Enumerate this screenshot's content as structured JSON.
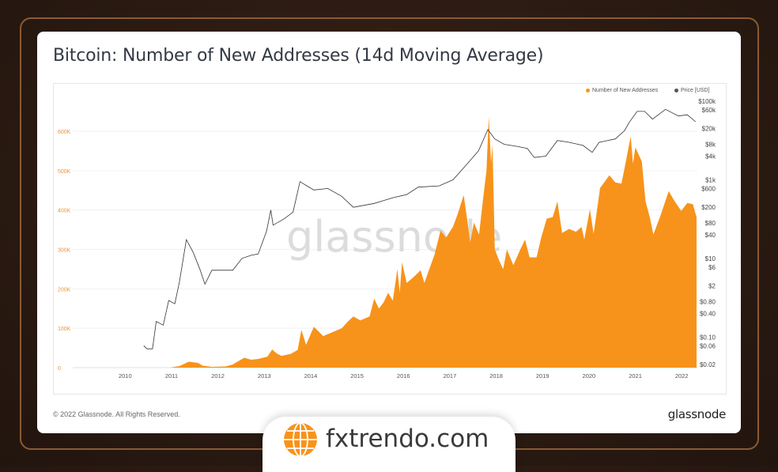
{
  "title": "Bitcoin: Number of New Addresses (14d Moving Average)",
  "footer": {
    "copyright": "© 2022 Glassnode. All Rights Reserved.",
    "logo": "glassnode"
  },
  "watermark": "glassnode",
  "badge": {
    "text": "fxtrendo.com",
    "icon": "globe-icon",
    "icon_color": "#f7931a"
  },
  "colors": {
    "addresses": "#f7931a",
    "price": "#333333",
    "left_axis": "#e8953a"
  },
  "chart_data": {
    "type": "area",
    "title": "Bitcoin: Number of New Addresses (14d Moving Average)",
    "legend": {
      "placement": "top-right",
      "entries": [
        "Number of New Addresses",
        "Price [USD]"
      ]
    },
    "grid": true,
    "x_ticks": [
      "2010",
      "2011",
      "2012",
      "2013",
      "2014",
      "2015",
      "2016",
      "2017",
      "2018",
      "2019",
      "2020",
      "2021",
      "2022"
    ],
    "xlim": [
      2009.0,
      2022.45
    ],
    "left_axis": {
      "ticks": [
        "0",
        "100K",
        "200K",
        "300K",
        "400K",
        "500K",
        "600K"
      ],
      "tick_values": [
        0,
        100000,
        200000,
        300000,
        400000,
        500000,
        600000
      ],
      "ylim": [
        0,
        600000
      ]
    },
    "right_axis": {
      "scale": "log",
      "ticks": [
        "$100k",
        "$60k",
        "$20k",
        "$8k",
        "$4k",
        "$1k",
        "$600",
        "$200",
        "$80",
        "$40",
        "$10",
        "$6",
        "$2",
        "$0.80",
        "$0.40",
        "$0.10",
        "$0.06",
        "$0.02"
      ],
      "tick_values": [
        100000,
        60000,
        20000,
        8000,
        4000,
        1000,
        600,
        200,
        80,
        40,
        10,
        6,
        2,
        0.8,
        0.4,
        0.1,
        0.06,
        0.02
      ],
      "ylim": [
        0.02,
        100000
      ]
    },
    "series": [
      {
        "name": "Number of New Addresses",
        "type": "area",
        "points": [
          [
            2011.1,
            0
          ],
          [
            2011.3,
            4000
          ],
          [
            2011.5,
            15000
          ],
          [
            2011.7,
            12000
          ],
          [
            2011.8,
            5000
          ],
          [
            2012.0,
            2000
          ],
          [
            2012.3,
            3000
          ],
          [
            2012.45,
            8000
          ],
          [
            2012.55,
            15000
          ],
          [
            2012.7,
            25000
          ],
          [
            2012.85,
            20000
          ],
          [
            2013.0,
            22000
          ],
          [
            2013.2,
            28000
          ],
          [
            2013.3,
            46000
          ],
          [
            2013.4,
            36000
          ],
          [
            2013.5,
            30000
          ],
          [
            2013.7,
            35000
          ],
          [
            2013.85,
            45000
          ],
          [
            2013.93,
            96000
          ],
          [
            2014.03,
            58000
          ],
          [
            2014.2,
            104000
          ],
          [
            2014.4,
            80000
          ],
          [
            2014.6,
            90000
          ],
          [
            2014.8,
            100000
          ],
          [
            2014.93,
            117000
          ],
          [
            2015.05,
            130000
          ],
          [
            2015.2,
            120000
          ],
          [
            2015.4,
            130000
          ],
          [
            2015.5,
            175000
          ],
          [
            2015.6,
            150000
          ],
          [
            2015.7,
            165000
          ],
          [
            2015.8,
            190000
          ],
          [
            2015.9,
            170000
          ],
          [
            2016.0,
            250000
          ],
          [
            2016.05,
            190000
          ],
          [
            2016.1,
            267000
          ],
          [
            2016.2,
            215000
          ],
          [
            2016.35,
            230000
          ],
          [
            2016.5,
            247000
          ],
          [
            2016.58,
            215000
          ],
          [
            2016.8,
            287000
          ],
          [
            2016.93,
            348000
          ],
          [
            2017.05,
            330000
          ],
          [
            2017.2,
            358000
          ],
          [
            2017.3,
            390000
          ],
          [
            2017.43,
            438000
          ],
          [
            2017.5,
            380000
          ],
          [
            2017.57,
            318000
          ],
          [
            2017.65,
            368000
          ],
          [
            2017.76,
            338000
          ],
          [
            2017.85,
            432000
          ],
          [
            2017.92,
            500000
          ],
          [
            2017.97,
            637000
          ],
          [
            2018.02,
            520000
          ],
          [
            2018.05,
            567000
          ],
          [
            2018.1,
            300000
          ],
          [
            2018.2,
            270000
          ],
          [
            2018.28,
            250000
          ],
          [
            2018.36,
            300000
          ],
          [
            2018.5,
            260000
          ],
          [
            2018.65,
            300000
          ],
          [
            2018.75,
            325000
          ],
          [
            2018.85,
            280000
          ],
          [
            2019.0,
            280000
          ],
          [
            2019.1,
            330000
          ],
          [
            2019.22,
            378000
          ],
          [
            2019.35,
            382000
          ],
          [
            2019.45,
            422000
          ],
          [
            2019.55,
            342000
          ],
          [
            2019.7,
            352000
          ],
          [
            2019.85,
            345000
          ],
          [
            2019.97,
            357000
          ],
          [
            2020.03,
            325000
          ],
          [
            2020.15,
            402000
          ],
          [
            2020.23,
            340000
          ],
          [
            2020.37,
            456000
          ],
          [
            2020.57,
            488000
          ],
          [
            2020.7,
            470000
          ],
          [
            2020.83,
            467000
          ],
          [
            2020.9,
            508000
          ],
          [
            2021.03,
            587000
          ],
          [
            2021.08,
            518000
          ],
          [
            2021.13,
            559000
          ],
          [
            2021.27,
            523000
          ],
          [
            2021.35,
            422000
          ],
          [
            2021.44,
            382000
          ],
          [
            2021.52,
            338000
          ],
          [
            2021.67,
            385000
          ],
          [
            2021.85,
            448000
          ],
          [
            2021.98,
            422000
          ],
          [
            2022.12,
            398000
          ],
          [
            2022.25,
            418000
          ],
          [
            2022.37,
            415000
          ],
          [
            2022.45,
            382000
          ]
        ]
      },
      {
        "name": "Price [USD]",
        "type": "line",
        "points": [
          [
            2010.53,
            0.06
          ],
          [
            2010.6,
            0.05
          ],
          [
            2010.72,
            0.05
          ],
          [
            2010.8,
            0.25
          ],
          [
            2010.95,
            0.2
          ],
          [
            2011.07,
            0.85
          ],
          [
            2011.2,
            0.7
          ],
          [
            2011.3,
            2.5
          ],
          [
            2011.45,
            30
          ],
          [
            2011.6,
            14
          ],
          [
            2011.75,
            5
          ],
          [
            2011.85,
            2.2
          ],
          [
            2012.0,
            5
          ],
          [
            2012.2,
            5
          ],
          [
            2012.45,
            5
          ],
          [
            2012.65,
            10
          ],
          [
            2012.85,
            12
          ],
          [
            2013.0,
            13
          ],
          [
            2013.18,
            50
          ],
          [
            2013.27,
            170
          ],
          [
            2013.32,
            70
          ],
          [
            2013.55,
            100
          ],
          [
            2013.75,
            150
          ],
          [
            2013.9,
            900
          ],
          [
            2014.05,
            700
          ],
          [
            2014.2,
            550
          ],
          [
            2014.5,
            600
          ],
          [
            2014.8,
            380
          ],
          [
            2015.05,
            200
          ],
          [
            2015.5,
            250
          ],
          [
            2015.9,
            350
          ],
          [
            2016.2,
            420
          ],
          [
            2016.45,
            650
          ],
          [
            2016.9,
            700
          ],
          [
            2017.2,
            1000
          ],
          [
            2017.5,
            2500
          ],
          [
            2017.75,
            5500
          ],
          [
            2017.95,
            19000
          ],
          [
            2018.1,
            11000
          ],
          [
            2018.3,
            8000
          ],
          [
            2018.6,
            7000
          ],
          [
            2018.8,
            6300
          ],
          [
            2018.95,
            3700
          ],
          [
            2019.2,
            4000
          ],
          [
            2019.45,
            10000
          ],
          [
            2019.7,
            9000
          ],
          [
            2020.0,
            7500
          ],
          [
            2020.2,
            5000
          ],
          [
            2020.35,
            9000
          ],
          [
            2020.7,
            11000
          ],
          [
            2020.9,
            18000
          ],
          [
            2021.0,
            29000
          ],
          [
            2021.17,
            55000
          ],
          [
            2021.33,
            55000
          ],
          [
            2021.5,
            35000
          ],
          [
            2021.78,
            62000
          ],
          [
            2022.06,
            42000
          ],
          [
            2022.25,
            45000
          ],
          [
            2022.43,
            30000
          ]
        ]
      }
    ]
  }
}
